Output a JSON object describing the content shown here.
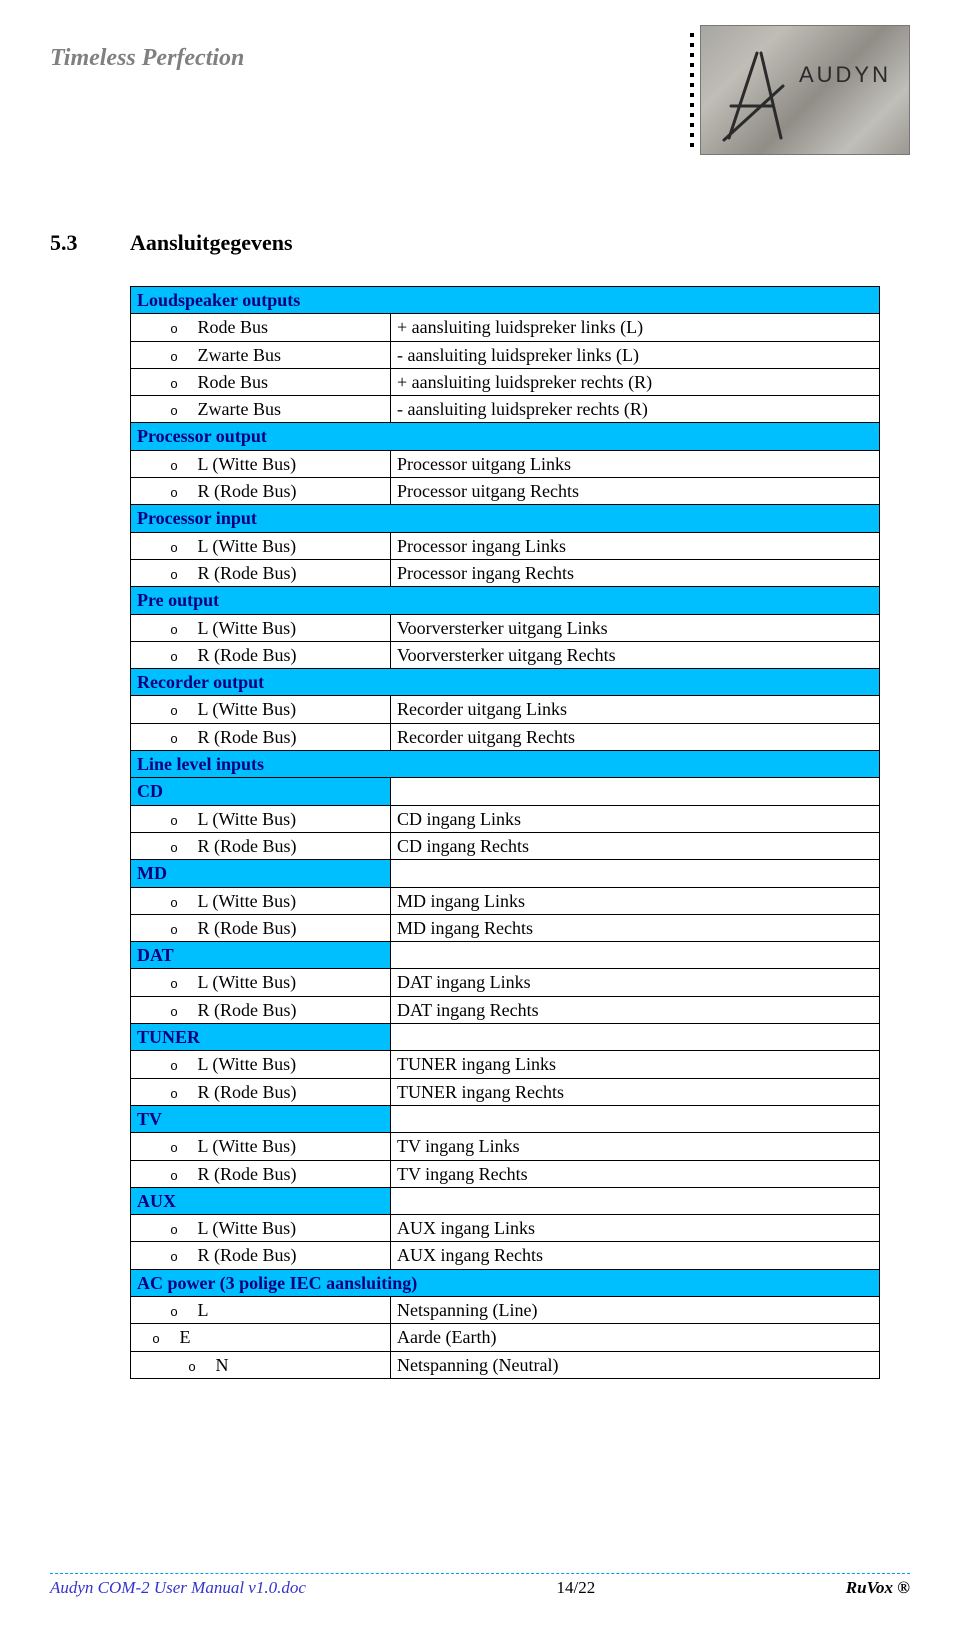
{
  "colors": {
    "header_bg": "#00bfff",
    "header_text": "#000080",
    "border": "#000000",
    "tagline": "#808080",
    "footer_left": "#3333cc",
    "footer_dash": "#00a0e6"
  },
  "header": {
    "tagline": "Timeless Perfection",
    "logo_text": "AUDYN"
  },
  "section": {
    "num": "5.3",
    "title": "Aansluitgegevens"
  },
  "table": {
    "groups": [
      {
        "header": "Loudspeaker outputs",
        "colspan": 2,
        "rows": [
          {
            "indent": 1,
            "label": "Rode Bus",
            "value": "+ aansluiting luidspreker links (L)"
          },
          {
            "indent": 1,
            "label": "Zwarte Bus",
            "value": "- aansluiting luidspreker links (L)"
          },
          {
            "indent": 1,
            "label": "Rode Bus",
            "value": "+ aansluiting luidspreker rechts (R)"
          },
          {
            "indent": 1,
            "label": "Zwarte Bus",
            "value": "- aansluiting luidspreker rechts (R)"
          }
        ]
      },
      {
        "header": "Processor output",
        "colspan": 2,
        "rows": [
          {
            "indent": 1,
            "label": "L (Witte Bus)",
            "value": "Processor uitgang Links"
          },
          {
            "indent": 1,
            "label": "R (Rode Bus)",
            "value": "Processor uitgang Rechts"
          }
        ]
      },
      {
        "header": "Processor input",
        "colspan": 2,
        "rows": [
          {
            "indent": 1,
            "label": "L (Witte Bus)",
            "value": "Processor ingang Links"
          },
          {
            "indent": 1,
            "label": "R (Rode Bus)",
            "value": "Processor ingang Rechts"
          }
        ]
      },
      {
        "header": "Pre output",
        "colspan": 2,
        "rows": [
          {
            "indent": 1,
            "label": "L (Witte Bus)",
            "value": "Voorversterker uitgang Links"
          },
          {
            "indent": 1,
            "label": "R (Rode Bus)",
            "value": "Voorversterker uitgang Rechts"
          }
        ]
      },
      {
        "header": "Recorder output",
        "colspan": 2,
        "rows": [
          {
            "indent": 1,
            "label": "L (Witte Bus)",
            "value": "Recorder uitgang Links"
          },
          {
            "indent": 1,
            "label": "R (Rode Bus)",
            "value": "Recorder uitgang Rechts"
          }
        ]
      },
      {
        "header": "Line level inputs",
        "colspan": 2,
        "rows": []
      },
      {
        "header": "CD",
        "colspan": 1,
        "rows": [
          {
            "indent": 1,
            "label": "L (Witte Bus)",
            "value": "CD ingang Links"
          },
          {
            "indent": 1,
            "label": "R (Rode Bus)",
            "value": "CD ingang Rechts"
          }
        ]
      },
      {
        "header": "MD",
        "colspan": 1,
        "rows": [
          {
            "indent": 1,
            "label": "L (Witte Bus)",
            "value": "MD ingang Links"
          },
          {
            "indent": 1,
            "label": "R (Rode Bus)",
            "value": "MD ingang Rechts"
          }
        ]
      },
      {
        "header": "DAT",
        "colspan": 1,
        "rows": [
          {
            "indent": 1,
            "label": "L (Witte Bus)",
            "value": "DAT ingang Links"
          },
          {
            "indent": 1,
            "label": "R (Rode Bus)",
            "value": "DAT ingang Rechts"
          }
        ]
      },
      {
        "header": "TUNER",
        "colspan": 1,
        "rows": [
          {
            "indent": 1,
            "label": "L (Witte Bus)",
            "value": "TUNER ingang Links"
          },
          {
            "indent": 1,
            "label": "R (Rode Bus)",
            "value": "TUNER ingang Rechts"
          }
        ]
      },
      {
        "header": "TV",
        "colspan": 1,
        "rows": [
          {
            "indent": 1,
            "label": "L (Witte Bus)",
            "value": "TV ingang Links"
          },
          {
            "indent": 1,
            "label": "R (Rode Bus)",
            "value": "TV ingang Rechts"
          }
        ]
      },
      {
        "header": "AUX",
        "colspan": 1,
        "rows": [
          {
            "indent": 1,
            "label": "L (Witte Bus)",
            "value": "AUX ingang Links"
          },
          {
            "indent": 1,
            "label": "R (Rode Bus)",
            "value": "AUX ingang Rechts"
          }
        ]
      },
      {
        "header": "AC power (3 polige IEC aansluiting)",
        "colspan": 2,
        "rows": [
          {
            "indent": 1,
            "label": "L",
            "value": "Netspanning (Line)"
          },
          {
            "indent": 0,
            "label": "E",
            "value": "Aarde  (Earth)"
          },
          {
            "indent": 2,
            "label": "N",
            "value": "Netspanning (Neutral)"
          }
        ]
      }
    ]
  },
  "footer": {
    "left": "Audyn COM-2 User Manual v1.0.doc",
    "mid": "14/22",
    "right": "RuVox ®"
  }
}
